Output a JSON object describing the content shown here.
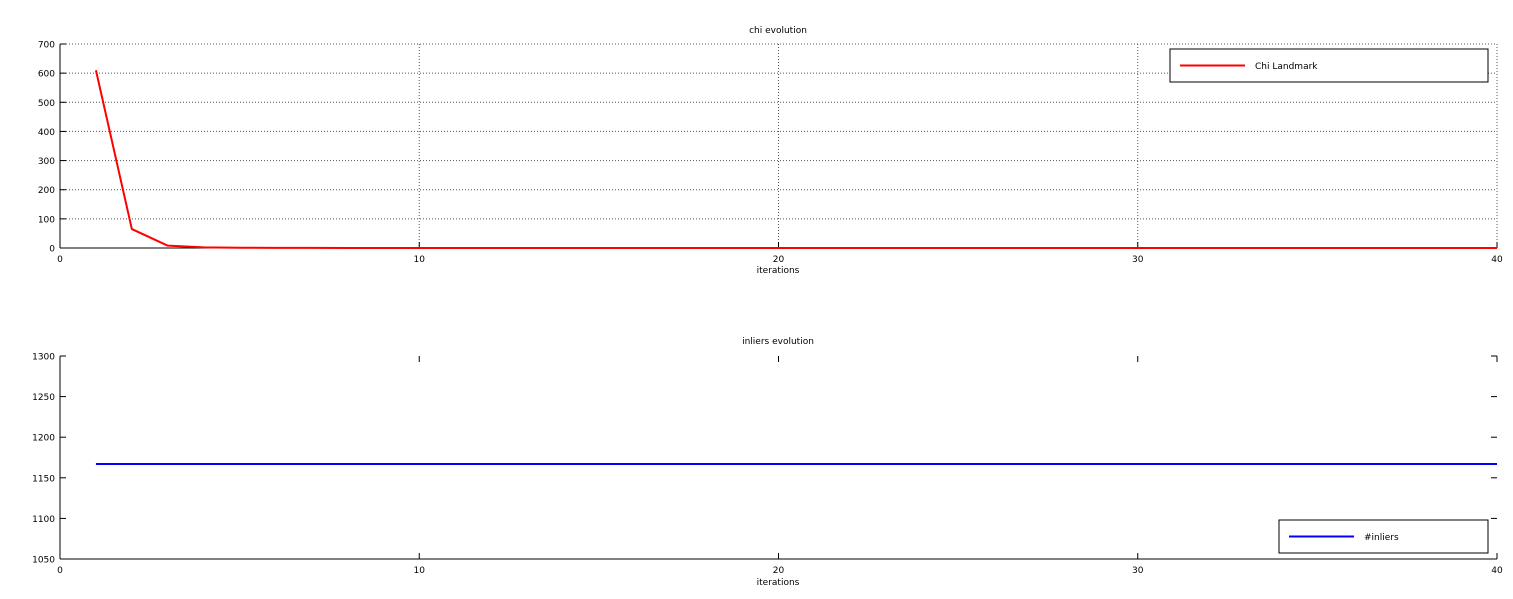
{
  "chart_data": [
    {
      "type": "line",
      "title": "chi evolution",
      "xlabel": "iterations",
      "ylabel": "",
      "xlim": [
        0,
        40
      ],
      "ylim": [
        0,
        700
      ],
      "xticks": [
        0,
        10,
        20,
        30,
        40
      ],
      "yticks": [
        0,
        100,
        200,
        300,
        400,
        500,
        600,
        700
      ],
      "grid": true,
      "legend_position": "top-right",
      "series": [
        {
          "name": "Chi Landmark",
          "color": "#ff0000",
          "x": [
            1,
            2,
            3,
            4,
            5,
            6,
            7,
            8,
            9,
            10,
            11,
            12,
            13,
            14,
            15,
            16,
            17,
            18,
            19,
            20,
            21,
            22,
            23,
            24,
            25,
            26,
            27,
            28,
            29,
            30,
            31,
            32,
            33,
            34,
            35,
            36,
            37,
            38,
            39,
            40
          ],
          "y": [
            610,
            65,
            8,
            2,
            1,
            0.5,
            0.3,
            0.2,
            0.1,
            0.1,
            0.1,
            0.1,
            0.1,
            0.1,
            0.1,
            0.1,
            0.1,
            0.1,
            0.1,
            0.1,
            0.1,
            0.1,
            0.1,
            0.1,
            0.1,
            0.1,
            0.1,
            0.1,
            0.1,
            0.1,
            0.1,
            0.1,
            0.1,
            0.1,
            0.1,
            0.1,
            0.1,
            0.1,
            0.1,
            0.1
          ]
        }
      ]
    },
    {
      "type": "line",
      "title": "inliers evolution",
      "xlabel": "iterations",
      "ylabel": "",
      "xlim": [
        0,
        40
      ],
      "ylim": [
        1050,
        1300
      ],
      "xticks": [
        0,
        10,
        20,
        30,
        40
      ],
      "yticks": [
        1050,
        1100,
        1150,
        1200,
        1250,
        1300
      ],
      "grid": false,
      "legend_position": "bottom-right",
      "series": [
        {
          "name": "#inliers",
          "color": "#0000ff",
          "x": [
            1,
            2,
            3,
            4,
            5,
            6,
            7,
            8,
            9,
            10,
            11,
            12,
            13,
            14,
            15,
            16,
            17,
            18,
            19,
            20,
            21,
            22,
            23,
            24,
            25,
            26,
            27,
            28,
            29,
            30,
            31,
            32,
            33,
            34,
            35,
            36,
            37,
            38,
            39,
            40
          ],
          "y": [
            1167,
            1167,
            1167,
            1167,
            1167,
            1167,
            1167,
            1167,
            1167,
            1167,
            1167,
            1167,
            1167,
            1167,
            1167,
            1167,
            1167,
            1167,
            1167,
            1167,
            1167,
            1167,
            1167,
            1167,
            1167,
            1167,
            1167,
            1167,
            1167,
            1167,
            1167,
            1167,
            1167,
            1167,
            1167,
            1167,
            1167,
            1167,
            1167,
            1167
          ]
        }
      ]
    }
  ]
}
